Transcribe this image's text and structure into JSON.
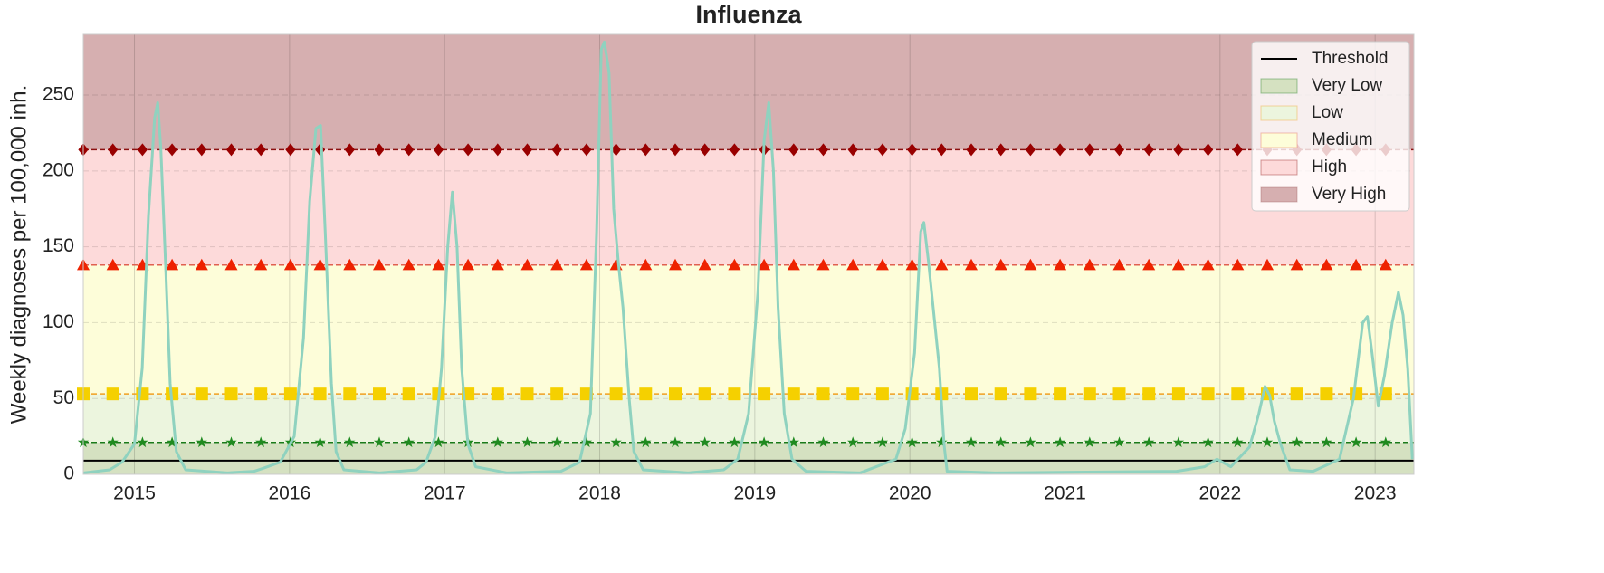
{
  "chart_data": {
    "type": "line",
    "title": "Influenza",
    "y_label": "Weekly diagnoses per 100,000 inh.",
    "xlim": [
      2014.67,
      2023.25
    ],
    "xticks": [
      2015,
      2016,
      2017,
      2018,
      2019,
      2020,
      2021,
      2022,
      2023
    ],
    "ylim": [
      0,
      290
    ],
    "yticks": [
      0,
      50,
      100,
      150,
      200,
      250
    ],
    "grid": true,
    "legend": "upper right",
    "threshold": {
      "name": "Threshold",
      "value": 9,
      "color": "#000000"
    },
    "bands": [
      {
        "name": "Very Low",
        "from": 0,
        "to": 21,
        "color": "#d5e1c1",
        "line_color": "#1a7a1a",
        "marker": "star",
        "marker_color": "#1f8a1f"
      },
      {
        "name": "Low",
        "from": 21,
        "to": 53,
        "color": "#ecf5de",
        "line_color": "#f0a020",
        "marker": "square",
        "marker_color": "#f5d000"
      },
      {
        "name": "Medium",
        "from": 53,
        "to": 138,
        "color": "#fdfdd9",
        "line_color": "#e06050",
        "marker": "triangle",
        "marker_color": "#ee2200"
      },
      {
        "name": "High",
        "from": 138,
        "to": 214,
        "color": "#fddada",
        "line_color": "#8b1010",
        "marker": "diamond",
        "marker_color": "#990000"
      },
      {
        "name": "Very High",
        "from": 214,
        "to": 290,
        "color": "#d6afb0"
      }
    ],
    "x": [
      2014.67,
      2014.84,
      2014.92,
      2015.0,
      2015.05,
      2015.09,
      2015.13,
      2015.15,
      2015.17,
      2015.2,
      2015.23,
      2015.27,
      2015.33,
      2015.6,
      2015.77,
      2015.83,
      2015.94,
      2016.03,
      2016.09,
      2016.13,
      2016.17,
      2016.2,
      2016.23,
      2016.27,
      2016.3,
      2016.35,
      2016.58,
      2016.82,
      2016.88,
      2016.94,
      2016.98,
      2017.02,
      2017.05,
      2017.08,
      2017.11,
      2017.15,
      2017.2,
      2017.4,
      2017.75,
      2017.87,
      2017.94,
      2017.98,
      2018.01,
      2018.03,
      2018.06,
      2018.09,
      2018.12,
      2018.15,
      2018.19,
      2018.22,
      2018.28,
      2018.57,
      2018.8,
      2018.89,
      2018.96,
      2019.02,
      2019.06,
      2019.09,
      2019.12,
      2019.15,
      2019.19,
      2019.24,
      2019.33,
      2019.68,
      2019.91,
      2019.97,
      2020.03,
      2020.07,
      2020.09,
      2020.12,
      2020.16,
      2020.19,
      2020.22,
      2020.24,
      2020.55,
      2021.72,
      2021.9,
      2021.98,
      2022.07,
      2022.19,
      2022.25,
      2022.29,
      2022.32,
      2022.35,
      2022.39,
      2022.45,
      2022.6,
      2022.77,
      2022.86,
      2022.92,
      2022.95,
      2022.98,
      2023.02,
      2023.06,
      2023.11,
      2023.15,
      2023.18,
      2023.21,
      2023.24
    ],
    "series": [
      {
        "color": "#8fd2bf",
        "values": [
          1,
          3,
          8,
          20,
          70,
          170,
          235,
          245,
          215,
          140,
          60,
          15,
          3,
          1,
          2,
          4,
          8,
          25,
          90,
          180,
          228,
          230,
          160,
          60,
          15,
          3,
          1,
          3,
          8,
          25,
          70,
          150,
          186,
          150,
          70,
          20,
          5,
          1,
          2,
          8,
          40,
          160,
          280,
          285,
          265,
          175,
          140,
          110,
          50,
          15,
          3,
          1,
          3,
          10,
          40,
          120,
          220,
          245,
          200,
          110,
          40,
          10,
          2,
          1,
          10,
          30,
          80,
          160,
          166,
          140,
          100,
          70,
          20,
          2,
          1,
          2,
          5,
          10,
          5,
          18,
          40,
          58,
          52,
          35,
          20,
          3,
          2,
          10,
          50,
          100,
          104,
          80,
          45,
          65,
          100,
          120,
          105,
          70,
          10
        ]
      }
    ]
  }
}
